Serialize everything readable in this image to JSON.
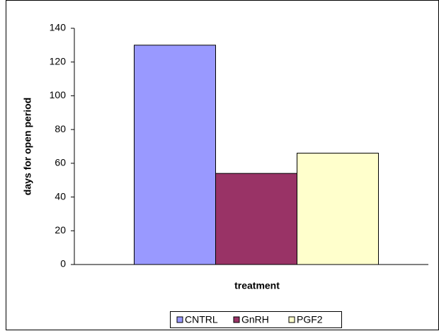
{
  "chart_data": {
    "type": "bar",
    "y_label": "days  for open period",
    "x_label": "treatment",
    "categories": [
      null
    ],
    "series": [
      {
        "name": "CNTRL",
        "color": "#9999ff",
        "values": [
          130
        ]
      },
      {
        "name": "GnRH",
        "color": "#993366",
        "values": [
          54
        ]
      },
      {
        "name": "PGF2",
        "color": "#ffffcc",
        "values": [
          66
        ]
      }
    ],
    "ylim": [
      0,
      140
    ],
    "yticks": [
      0,
      20,
      40,
      60,
      80,
      100,
      120,
      140
    ],
    "legend": "bottom"
  }
}
